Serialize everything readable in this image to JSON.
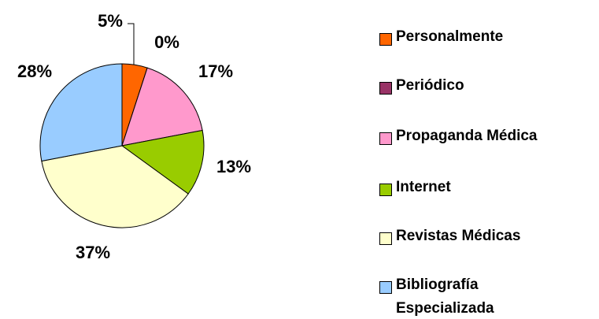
{
  "chart_data": {
    "type": "pie",
    "categories": [
      "Personalmente",
      "Periódico",
      "Propaganda Médica",
      "Internet",
      "Revistas Médicas",
      "Bibliografía Especializada"
    ],
    "values": [
      5,
      0,
      17,
      13,
      37,
      28
    ],
    "value_labels": [
      "5%",
      "0%",
      "17%",
      "13%",
      "37%",
      "28%"
    ],
    "colors": [
      "#ff6600",
      "#993366",
      "#ff99cc",
      "#99cc00",
      "#ffffcc",
      "#99ccff"
    ]
  }
}
